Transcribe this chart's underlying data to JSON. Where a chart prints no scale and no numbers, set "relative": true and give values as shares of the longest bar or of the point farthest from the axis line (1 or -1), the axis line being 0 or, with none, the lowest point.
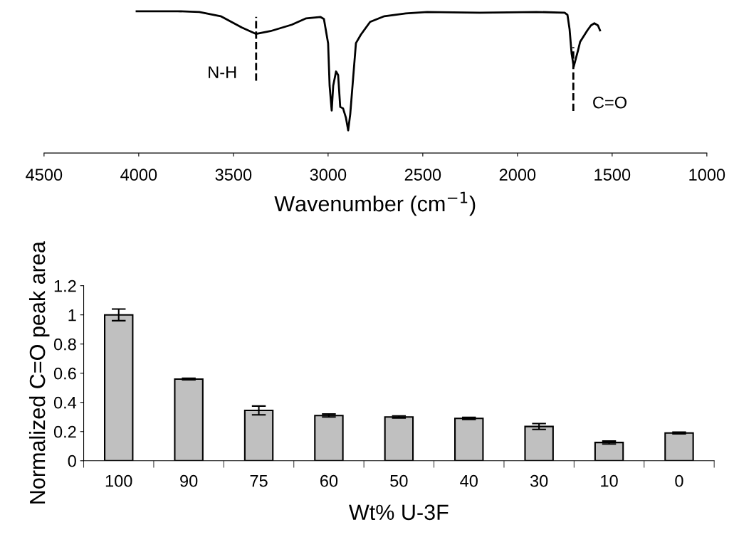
{
  "chart_data": [
    {
      "type": "line",
      "relative": true,
      "xlabel": "Wavenumber (cm$^{−1}$)",
      "xlim": [
        4500,
        1000
      ],
      "xticks": [
        4500,
        4000,
        3500,
        3000,
        2500,
        2000,
        1500,
        1000
      ],
      "tick_labels": "x",
      "grid": false,
      "legend": false,
      "marker": "none",
      "line_style": "solid",
      "series": [
        {
          "color": "#000000",
          "x": [
            4011,
            3793,
            3680,
            3567,
            3455,
            3380,
            3304,
            3192,
            3116,
            3041,
            3022,
            3000,
            2992,
            2981,
            2973,
            2958,
            2947,
            2936,
            2921,
            2906,
            2894,
            2883,
            2868,
            2853,
            2827,
            2778,
            2703,
            2590,
            2477,
            2200,
            1900,
            1751,
            1736,
            1725,
            1714,
            1703,
            1695,
            1680,
            1669,
            1650,
            1631,
            1612,
            1594,
            1575,
            1564
          ],
          "values": [
            1.0,
            1.0,
            0.995,
            0.965,
            0.885,
            0.84,
            0.86,
            0.905,
            0.95,
            0.96,
            0.945,
            0.775,
            0.475,
            0.3,
            0.475,
            0.575,
            0.55,
            0.325,
            0.315,
            0.25,
            0.16,
            0.275,
            0.525,
            0.775,
            0.835,
            0.925,
            0.965,
            0.985,
            0.995,
            0.99,
            0.995,
            0.99,
            0.975,
            0.875,
            0.7,
            0.61,
            0.65,
            0.725,
            0.785,
            0.825,
            0.865,
            0.9,
            0.915,
            0.9,
            0.865
          ]
        }
      ],
      "ref_lines": [
        {
          "axis": "x",
          "value": 3380,
          "label": "N-H",
          "color": "#000000",
          "line_style": "dashed"
        },
        {
          "axis": "x",
          "value": 1705,
          "label": "C=O",
          "color": "#000000",
          "line_style": "dashed"
        }
      ]
    },
    {
      "type": "bar",
      "xlabel": "Wt% U-3F",
      "ylabel": "Normalized C=O peak area",
      "categories": [
        "100",
        "90",
        "75",
        "60",
        "50",
        "40",
        "30",
        "10",
        "0"
      ],
      "values": [
        1.0,
        0.56,
        0.345,
        0.31,
        0.3,
        0.29,
        0.235,
        0.125,
        0.19
      ],
      "errors": [
        0.04,
        0.005,
        0.03,
        0.01,
        0.007,
        0.007,
        0.02,
        0.01,
        0.006
      ],
      "color": "#c0c0c0",
      "ylim": [
        0,
        1.2
      ],
      "yticks": [
        0,
        0.2,
        0.4,
        0.6,
        0.8,
        1,
        1.2
      ],
      "grid": false,
      "legend": false
    }
  ]
}
